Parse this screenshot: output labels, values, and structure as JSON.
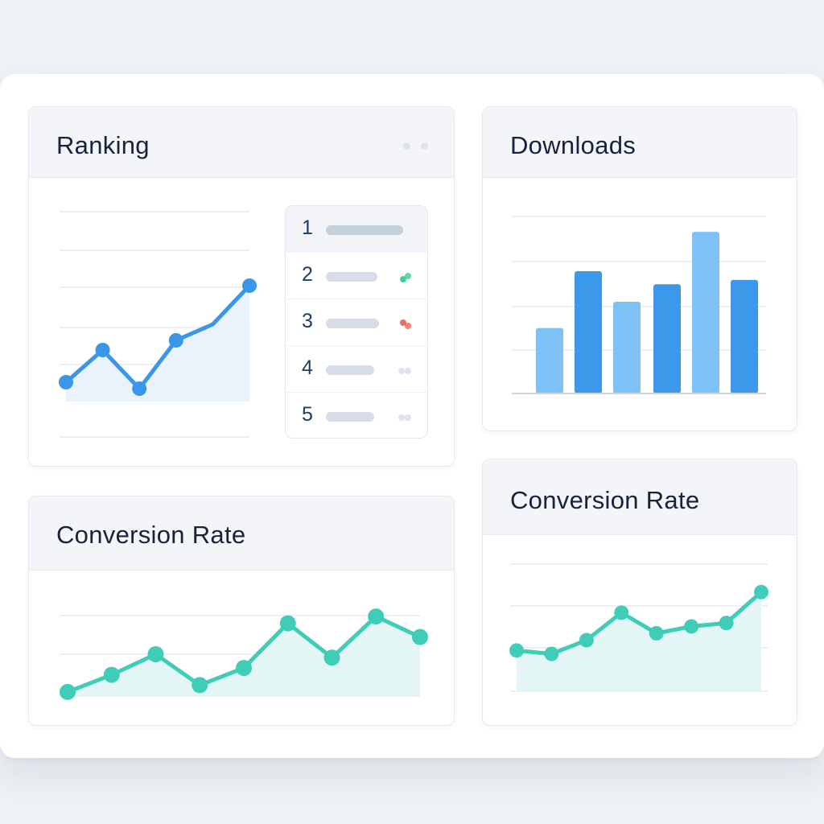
{
  "cards": {
    "ranking": {
      "title": "Ranking",
      "list": [
        {
          "rank": "1",
          "trend": "none"
        },
        {
          "rank": "2",
          "trend": "up"
        },
        {
          "rank": "3",
          "trend": "down"
        },
        {
          "rank": "4",
          "trend": "neutral"
        },
        {
          "rank": "5",
          "trend": "neutral"
        }
      ]
    },
    "downloads": {
      "title": "Downloads"
    },
    "conversion_left": {
      "title": "Conversion Rate"
    },
    "conversion_right": {
      "title": "Conversion Rate"
    }
  },
  "colors": {
    "blue_line": "#3a96e8",
    "blue_area": "#eaf3fc",
    "teal_line": "#3fcdb8",
    "teal_area": "#e3f5f5",
    "bar_light": "#7ec2f5",
    "bar_dark": "#3c99ea",
    "trend_up": "#3fcf8e",
    "trend_down": "#f26a63",
    "trend_neutral": "#dfe3e9"
  },
  "chart_data": [
    {
      "id": "ranking",
      "type": "area",
      "title": "Ranking",
      "x": [
        1,
        2,
        3,
        4,
        5,
        6
      ],
      "series": [
        {
          "values": [
            2.4,
            3.4,
            2.2,
            3.7,
            4.2,
            5.4
          ]
        }
      ],
      "ylim": [
        0,
        8
      ],
      "grid": true
    },
    {
      "id": "downloads",
      "type": "bar",
      "title": "Downloads",
      "categories": [
        "1",
        "2",
        "3",
        "4",
        "5",
        "6"
      ],
      "values": [
        15,
        28,
        21,
        25,
        37,
        26
      ],
      "ylim": [
        0,
        42
      ],
      "grid": true
    },
    {
      "id": "conversion_left",
      "type": "area",
      "title": "Conversion Rate",
      "x": [
        1,
        2,
        3,
        4,
        5,
        6,
        7,
        8,
        9
      ],
      "series": [
        {
          "values": [
            0.4,
            0.9,
            1.5,
            0.6,
            1.1,
            2.4,
            1.4,
            2.6,
            2.0
          ]
        }
      ],
      "ylim": [
        0,
        3
      ],
      "grid": true
    },
    {
      "id": "conversion_right",
      "type": "area",
      "title": "Conversion Rate",
      "x": [
        1,
        2,
        3,
        4,
        5,
        6,
        7,
        8
      ],
      "series": [
        {
          "values": [
            1.0,
            0.9,
            1.3,
            2.1,
            1.5,
            1.7,
            1.8,
            2.7
          ]
        }
      ],
      "ylim": [
        0,
        3
      ],
      "grid": true
    }
  ]
}
